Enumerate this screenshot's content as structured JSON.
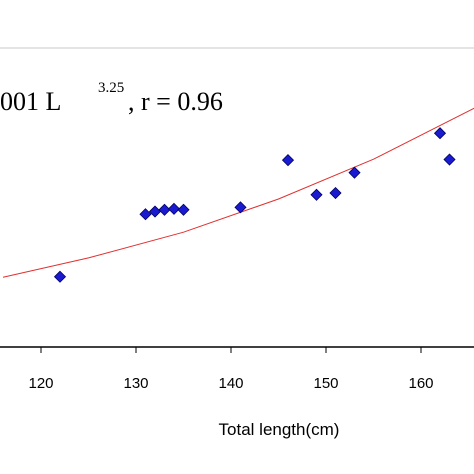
{
  "chart_data": {
    "type": "scatter",
    "xlabel": "Total length(cm)",
    "xlim": [
      116,
      166
    ],
    "ylim": [
      0,
      1
    ],
    "x_ticks": [
      120,
      130,
      140,
      150,
      160
    ],
    "x_tick_labels": [
      "120",
      "130",
      "140",
      "150",
      "160"
    ],
    "equation": {
      "prefix": "001 L",
      "exponent": "3.25",
      "suffix": ", r = 0.96"
    },
    "grid": "top border line only",
    "colors": {
      "points": "#1a1ad0",
      "point_stroke": "#000060",
      "fit_line": "#e03030",
      "axis": "#000000",
      "top_border": "#c8c8c8"
    },
    "points": [
      {
        "x": 122,
        "y": 0.235
      },
      {
        "x": 131,
        "y": 0.444
      },
      {
        "x": 132,
        "y": 0.453
      },
      {
        "x": 133,
        "y": 0.459
      },
      {
        "x": 134,
        "y": 0.462
      },
      {
        "x": 135,
        "y": 0.459
      },
      {
        "x": 141,
        "y": 0.467
      },
      {
        "x": 146,
        "y": 0.625
      },
      {
        "x": 149,
        "y": 0.509
      },
      {
        "x": 151,
        "y": 0.515
      },
      {
        "x": 153,
        "y": 0.583
      },
      {
        "x": 162,
        "y": 0.715
      },
      {
        "x": 163,
        "y": 0.627
      }
    ],
    "fit_line": [
      {
        "x": 116,
        "y": 0.233
      },
      {
        "x": 125,
        "y": 0.298
      },
      {
        "x": 135,
        "y": 0.384
      },
      {
        "x": 145,
        "y": 0.495
      },
      {
        "x": 155,
        "y": 0.628
      },
      {
        "x": 166,
        "y": 0.805
      }
    ]
  }
}
